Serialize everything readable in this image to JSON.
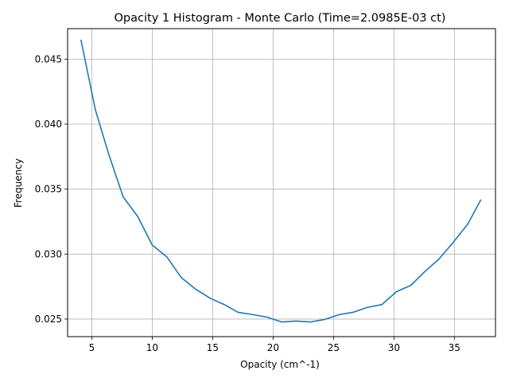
{
  "chart_data": {
    "type": "line",
    "title": "Opacity 1 Histogram - Monte Carlo (Time=2.0985E-03 ct)",
    "xlabel": "Opacity (cm^-1)",
    "ylabel": "Frequency",
    "xlim": [
      3.0,
      38.4
    ],
    "ylim": [
      0.02365,
      0.04735
    ],
    "xticks": [
      5,
      10,
      15,
      20,
      25,
      30,
      35
    ],
    "xtick_labels": [
      "5",
      "10",
      "15",
      "20",
      "25",
      "30",
      "35"
    ],
    "yticks": [
      0.025,
      0.03,
      0.035,
      0.04,
      0.045
    ],
    "ytick_labels": [
      "0.025",
      "0.030",
      "0.035",
      "0.040",
      "0.045"
    ],
    "grid": true,
    "series": [
      {
        "color": "#1f77b4",
        "x": [
          4.1,
          5.3,
          6.4,
          7.6,
          8.8,
          10.0,
          11.2,
          12.4,
          13.6,
          14.8,
          16.0,
          17.1,
          18.3,
          19.5,
          20.7,
          21.9,
          23.1,
          24.3,
          25.5,
          26.6,
          27.8,
          29.0,
          30.2,
          31.4,
          32.6,
          33.7,
          34.9,
          36.1,
          37.2
        ],
        "y": [
          0.0465,
          0.0411,
          0.0377,
          0.0344,
          0.0329,
          0.0307,
          0.0298,
          0.0282,
          0.0273,
          0.0266,
          0.0261,
          0.02552,
          0.02535,
          0.02515,
          0.02478,
          0.02485,
          0.02478,
          0.02498,
          0.02535,
          0.02552,
          0.0259,
          0.02612,
          0.0271,
          0.0276,
          0.0287,
          0.0296,
          0.0309,
          0.0323,
          0.0342
        ]
      }
    ]
  }
}
